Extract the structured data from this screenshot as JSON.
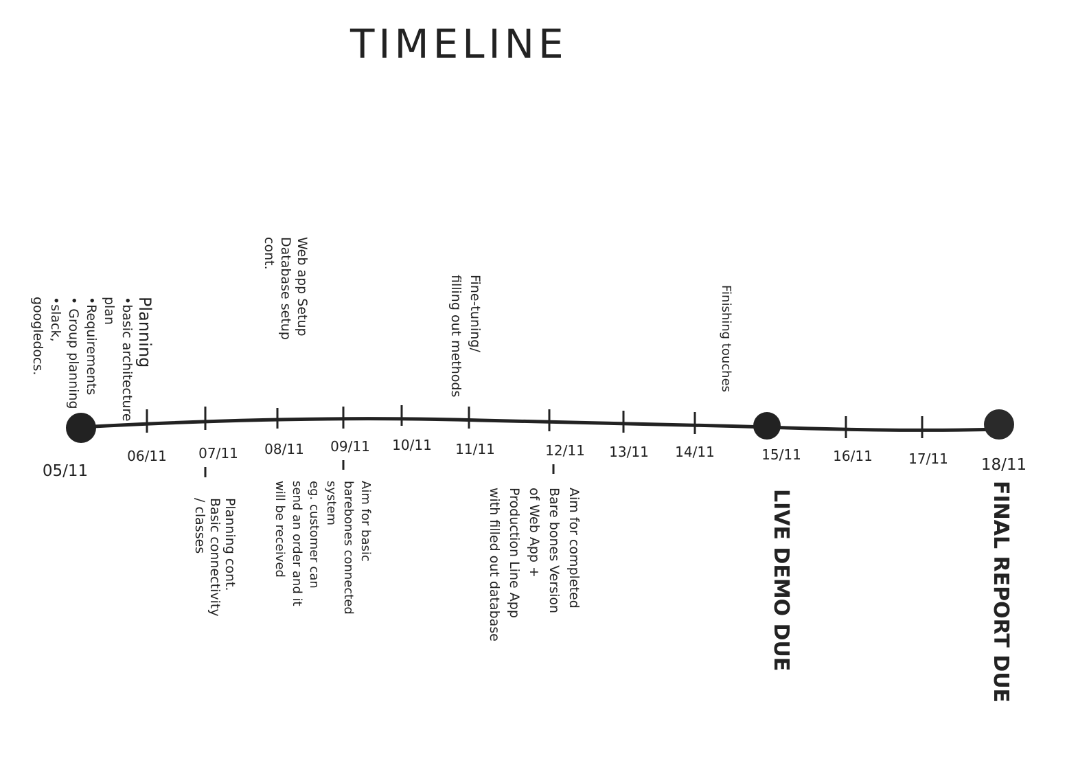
{
  "title": "TIMELINE",
  "dates": [
    "05/11",
    "06/11",
    "07/11",
    "08/11",
    "09/11",
    "10/11",
    "11/11",
    "12/11",
    "13/11",
    "14/11",
    "15/11",
    "16/11",
    "17/11",
    "18/11"
  ],
  "above": [
    {
      "lines": [
        "Planning",
        "•basic architecture",
        "plan",
        "•Requirements",
        "• Group planning",
        "•slack,",
        "googledocs."
      ]
    },
    {
      "lines": [
        "Web app Setup",
        "Database setup",
        "cont."
      ]
    },
    {
      "lines": [
        "Fine-tuning/",
        "filling out methods"
      ]
    },
    {
      "lines": [
        "Finishing touches"
      ]
    }
  ],
  "below": [
    {
      "lines": [
        "Planning cont.",
        "Basic connectivity",
        "/ classes"
      ]
    },
    {
      "lines": [
        "Aim for basic",
        "barebones connected",
        "system",
        "eg. customer can",
        "send an order and it",
        "will be received"
      ]
    },
    {
      "lines": [
        "Aim for completed",
        "Bare bones Version",
        "of Web App +",
        "Production Line App",
        "with filled out database"
      ]
    },
    {
      "lines": [
        "LIVE DEMO DUE"
      ]
    },
    {
      "lines": [
        "FINAL REPORT DUE"
      ]
    }
  ]
}
